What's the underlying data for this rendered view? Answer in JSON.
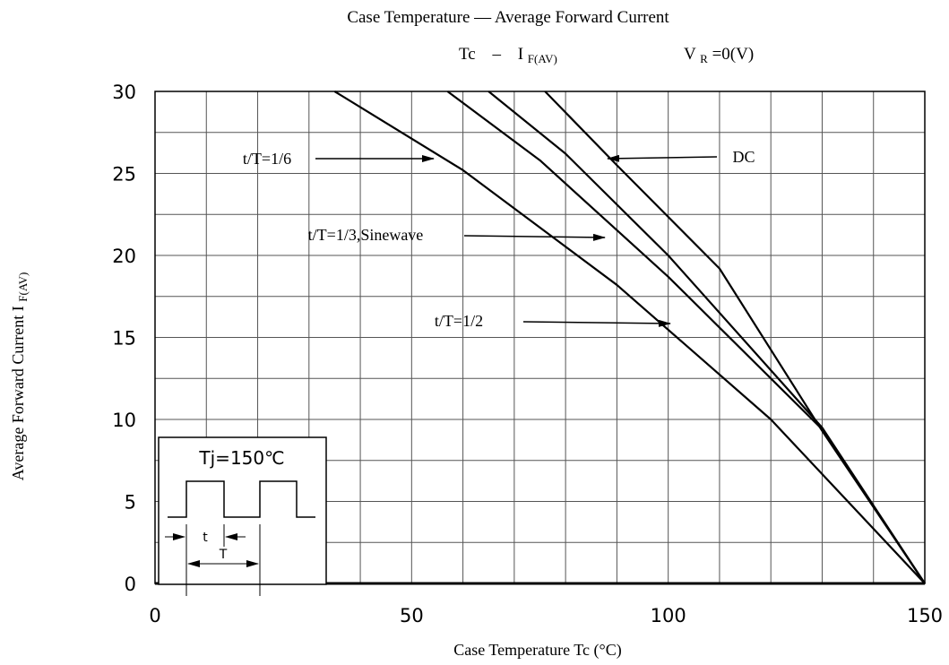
{
  "chart_data": {
    "type": "line",
    "title": "Case Temperature — Average Forward Current",
    "subtitle": {
      "tc": "Tc",
      "dash": "–",
      "i": "I",
      "i_sub": "F(AV)",
      "v": "V",
      "v_sub": "R",
      "v_rest": "=0(V)"
    },
    "xlabel": "Case Temperature Tc (°C)",
    "ylabel": {
      "main": "Average Forward Current I",
      "sub": "F(AV)"
    },
    "xlim": [
      0,
      150
    ],
    "ylim": [
      0,
      30
    ],
    "x_major_ticks": [
      0,
      50,
      100,
      150
    ],
    "x_minor_step": 10,
    "y_ticks": [
      0,
      5,
      10,
      15,
      20,
      25,
      30
    ],
    "y_minor_step": 2.5,
    "grid": true,
    "series": [
      {
        "name": "t/T=1/6",
        "x": [
          35,
          60,
          90,
          120,
          150
        ],
        "y": [
          30,
          25.2,
          18.2,
          10,
          0
        ]
      },
      {
        "name": "t/T=1/3,Sinewave",
        "x": [
          57,
          75,
          100,
          130,
          150
        ],
        "y": [
          30,
          25.8,
          18.7,
          9.4,
          0
        ]
      },
      {
        "name": "t/T=1/2",
        "x": [
          65,
          80,
          100,
          130,
          150
        ],
        "y": [
          30,
          26.2,
          20,
          9.5,
          0
        ]
      },
      {
        "name": "DC",
        "x": [
          76,
          90,
          110,
          130,
          150
        ],
        "y": [
          30,
          25.5,
          19.2,
          9.3,
          0
        ]
      }
    ],
    "annotations": [
      {
        "text": "t/T=1/6",
        "series": "t/T=1/6"
      },
      {
        "text": "t/T=1/3,Sinewave",
        "series": "t/T=1/3,Sinewave"
      },
      {
        "text": "t/T=1/2",
        "series": "t/T=1/2"
      },
      {
        "text": "DC",
        "series": "DC"
      }
    ],
    "inset": {
      "title": "Tj=150℃",
      "t_label": "t",
      "T_label": "T"
    }
  }
}
